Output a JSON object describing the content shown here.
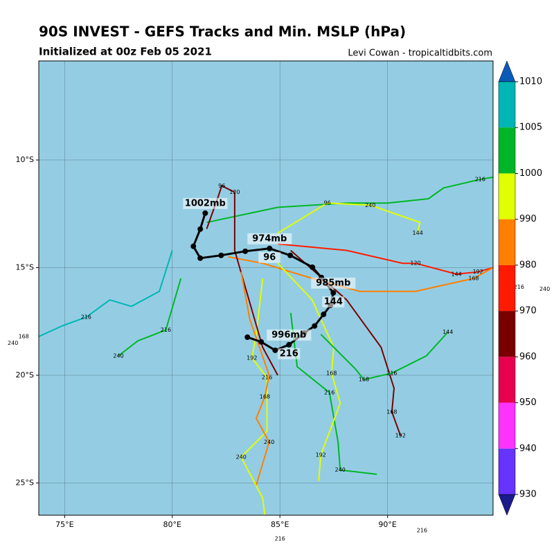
{
  "chart_data": {
    "type": "map",
    "title": "90S INVEST - GEFS Tracks and Min. MSLP (hPa)",
    "subtitle": "Initialized at 00z Feb 05 2021",
    "credit": "Levi Cowan - tropicaltidbits.com",
    "xlim": [
      73.8,
      94.9
    ],
    "ylim": [
      -26.5,
      -5.4
    ],
    "xticks": [
      {
        "value": 75,
        "label": "75°E"
      },
      {
        "value": 80,
        "label": "80°E"
      },
      {
        "value": 85,
        "label": "85°E"
      },
      {
        "value": 90,
        "label": "90°E"
      }
    ],
    "yticks": [
      {
        "value": -10,
        "label": "10°S"
      },
      {
        "value": -15,
        "label": "15°S"
      },
      {
        "value": -20,
        "label": "20°S"
      },
      {
        "value": -25,
        "label": "25°S"
      }
    ],
    "grid": true,
    "background": "#94cde3",
    "tracks": [
      {
        "color": "#00b627",
        "lon": [
          81.6,
          84.9,
          88.1,
          90.0,
          91.9,
          92.6,
          94.3,
          94.9
        ],
        "lat": [
          -12.9,
          -12.2,
          -12.0,
          -12.0,
          -11.8,
          -11.3,
          -10.9,
          -10.8
        ],
        "hours": [
          null,
          null,
          null,
          null,
          null,
          null,
          216,
          null
        ]
      },
      {
        "color": "#00b5b5",
        "lon": [
          80.0,
          79.4,
          78.1,
          77.1,
          76.0,
          74.9,
          73.8
        ],
        "lat": [
          -14.2,
          -16.1,
          -16.8,
          -16.5,
          -17.3,
          -17.7,
          -18.2
        ],
        "hours": [
          null,
          null,
          null,
          null,
          216,
          null,
          null
        ]
      },
      {
        "color": "#00b627",
        "lon": [
          80.4,
          79.7,
          78.4,
          77.5
        ],
        "lat": [
          -15.5,
          -17.9,
          -18.4,
          -19.1
        ],
        "hours": [
          null,
          216,
          null,
          240
        ]
      },
      {
        "color": "#e1ff00",
        "lon": [
          84.2,
          83.9,
          83.7,
          84.4,
          84.4,
          83.2,
          84.2,
          84.3
        ],
        "lat": [
          -15.5,
          -18.1,
          -19.2,
          -20.1,
          -22.6,
          -23.8,
          -25.7,
          -26.5
        ],
        "hours": [
          null,
          null,
          192,
          216,
          null,
          240,
          null,
          null
        ]
      },
      {
        "color": "#00b627",
        "lon": [
          85.5,
          85.8,
          87.3,
          87.7,
          87.8,
          89.5
        ],
        "lat": [
          -17.1,
          -19.6,
          -20.8,
          -23.1,
          -24.4,
          -24.6
        ],
        "hours": [
          null,
          null,
          216,
          null,
          240,
          null
        ]
      },
      {
        "color": "#ff1a00",
        "lon": [
          84.9,
          88.1,
          90.7,
          91.3,
          93.2,
          94.2,
          94.9
        ],
        "lat": [
          -13.9,
          -14.2,
          -14.8,
          -14.8,
          -15.3,
          -15.2,
          -15.0
        ],
        "hours": [
          null,
          null,
          null,
          120,
          144,
          192,
          null
        ]
      },
      {
        "color": "#ff7f00",
        "lon": [
          82.6,
          84.2,
          86.5,
          88.7,
          91.3,
          94.0,
          94.9
        ],
        "lat": [
          -14.5,
          -14.8,
          -15.5,
          -16.1,
          -16.1,
          -15.5,
          -15.0
        ],
        "hours": [
          null,
          null,
          null,
          null,
          null,
          168,
          null
        ]
      },
      {
        "color": "#7a0000",
        "lon": [
          81.6,
          82.1,
          82.3,
          82.9,
          82.9,
          84.2,
          84.9
        ],
        "lat": [
          -13.2,
          -11.8,
          -11.2,
          -11.5,
          -14.2,
          -18.7,
          -20.0
        ],
        "hours": [
          null,
          null,
          96,
          120,
          null,
          null,
          null
        ]
      },
      {
        "color": "#e1ff00",
        "lon": [
          84.9,
          86.5,
          87.5,
          87.4,
          87.8,
          86.9,
          86.8
        ],
        "lat": [
          -14.8,
          -16.5,
          -18.7,
          -19.9,
          -21.3,
          -23.7,
          -24.9
        ],
        "hours": [
          null,
          null,
          null,
          168,
          null,
          192,
          null
        ]
      },
      {
        "color": "#ff7f00",
        "lon": [
          83.2,
          83.6,
          84.5,
          84.3,
          83.9,
          84.5,
          83.9
        ],
        "lat": [
          -15.2,
          -17.4,
          -20.0,
          -21.0,
          -22.0,
          -23.1,
          -25.1
        ],
        "hours": [
          null,
          null,
          null,
          168,
          null,
          240,
          null
        ]
      },
      {
        "color": "#7a0000",
        "lon": [
          85.5,
          88.1,
          89.7,
          90.3,
          90.2,
          90.6
        ],
        "lat": [
          -14.2,
          -16.5,
          -18.7,
          -20.6,
          -21.7,
          -22.8
        ],
        "hours": [
          null,
          null,
          null,
          null,
          168,
          192
        ]
      },
      {
        "color": "#00b627",
        "lon": [
          86.9,
          88.5,
          88.9,
          90.2,
          91.8,
          92.8
        ],
        "lat": [
          -18.1,
          -19.7,
          -20.2,
          -19.9,
          -19.1,
          -18.0
        ],
        "hours": [
          null,
          null,
          168,
          216,
          null,
          144
        ]
      },
      {
        "color": "#e1ff00",
        "lon": [
          84.9,
          87.2,
          89.2,
          91.5,
          91.4
        ],
        "lat": [
          -13.4,
          -12.0,
          -12.1,
          -12.9,
          -13.4
        ],
        "hours": [
          null,
          96,
          240,
          null,
          144
        ]
      }
    ],
    "mean_track": {
      "color": "#000000",
      "lon": [
        81.53,
        81.3,
        80.98,
        81.3,
        82.27,
        83.39,
        84.52,
        85.48,
        86.51,
        86.93,
        87.48,
        87.35,
        87.03,
        86.61,
        86.13,
        85.42,
        84.78,
        84.13,
        83.49
      ],
      "lat": [
        -12.47,
        -13.21,
        -14.01,
        -14.56,
        -14.43,
        -14.24,
        -14.11,
        -14.43,
        -14.98,
        -15.46,
        -16.17,
        -16.75,
        -17.17,
        -17.71,
        -18.03,
        -18.58,
        -18.84,
        -18.45,
        -18.23
      ],
      "hours": [
        null,
        null,
        null,
        null,
        null,
        null,
        96,
        null,
        null,
        null,
        144,
        null,
        null,
        null,
        null,
        216,
        null,
        null,
        null
      ],
      "pressure_labels": [
        "1002mb",
        null,
        null,
        null,
        null,
        null,
        "974mb",
        null,
        null,
        null,
        "985mb",
        null,
        null,
        null,
        null,
        "996mb",
        null,
        null,
        null
      ]
    },
    "outside_hour_labels": [
      {
        "lon": 73.1,
        "lat": -18.2,
        "hour": 168
      },
      {
        "lon": 72.6,
        "lat": -18.5,
        "hour": 240
      },
      {
        "lon": 96.1,
        "lat": -15.9,
        "hour": 216
      },
      {
        "lon": 97.3,
        "lat": -16.0,
        "hour": 240
      },
      {
        "lon": 85.0,
        "lat": -27.6,
        "hour": 216
      },
      {
        "lon": 91.6,
        "lat": -27.2,
        "hour": 216
      }
    ],
    "colorbar": {
      "levels": [
        1010,
        1005,
        1000,
        990,
        980,
        970,
        960,
        950,
        940,
        930
      ],
      "colors": [
        "#00b5b5",
        "#00b627",
        "#e1ff00",
        "#ff7f00",
        "#ff1a00",
        "#7a0000",
        "#e8004f",
        "#ff33ff",
        "#6633ff"
      ],
      "over_color": "#0a5bb5",
      "under_color": "#1b1b8c"
    }
  }
}
